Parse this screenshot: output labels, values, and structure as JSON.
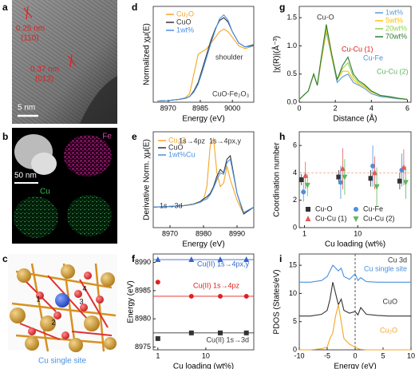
{
  "panel_labels": [
    "a",
    "b",
    "c",
    "d",
    "e",
    "f",
    "g",
    "h",
    "i"
  ],
  "tem": {
    "spacing_1": "0.25 nm",
    "plane_1": "(110)",
    "spacing_2": "0.37 nm",
    "plane_2": "(012)",
    "scale_bar": "5 nm"
  },
  "eds": {
    "fe": "Fe",
    "scale_bar": "50 nm",
    "cu": "Cu"
  },
  "structure": {
    "caption": "Cu single site",
    "site_labels": [
      "1",
      "2",
      "3",
      "4"
    ]
  },
  "chart_data": [
    {
      "type": "line",
      "xlabel": "Energy (eV)",
      "ylabel": "Normalized χμ(E)",
      "x": [
        8965,
        8970,
        8975,
        8978,
        8980,
        8982,
        8984,
        8986,
        8988,
        8990,
        8992,
        8994,
        8996,
        8998,
        9000,
        9003,
        9006,
        9010
      ],
      "xlim": [
        8963,
        9010
      ],
      "xticks": [
        8970,
        8985,
        9000
      ],
      "ylim": [
        0,
        1.7
      ],
      "series": [
        {
          "name": "Cu₂O",
          "color": "#f5a623",
          "values": [
            0.02,
            0.03,
            0.05,
            0.08,
            0.15,
            0.5,
            0.85,
            0.9,
            0.95,
            1.05,
            1.15,
            1.25,
            1.3,
            1.25,
            1.15,
            1.0,
            0.95,
            1.0
          ]
        },
        {
          "name": "CuO",
          "color": "#333333",
          "values": [
            0.02,
            0.03,
            0.05,
            0.07,
            0.1,
            0.2,
            0.35,
            0.6,
            0.85,
            1.1,
            1.3,
            1.45,
            1.5,
            1.42,
            1.25,
            1.05,
            0.98,
            1.02
          ]
        },
        {
          "name": "1wt%",
          "color": "#4a90e2",
          "values": [
            0.02,
            0.03,
            0.05,
            0.07,
            0.1,
            0.18,
            0.32,
            0.55,
            0.8,
            1.05,
            1.28,
            1.48,
            1.55,
            1.45,
            1.25,
            1.05,
            0.98,
            1.0
          ]
        }
      ],
      "annotations": [
        "shoulder",
        "CuO-Fe₂O₃"
      ]
    },
    {
      "type": "line",
      "xlabel": "Energy (eV)",
      "ylabel": "Derivative Norm. χμ(E)",
      "x": [
        8965,
        8970,
        8974,
        8977,
        8979,
        8980,
        8981,
        8982,
        8983,
        8984,
        8985,
        8986,
        8987,
        8988,
        8990,
        8992,
        8995
      ],
      "xlim": [
        8965,
        8995
      ],
      "xticks": [
        8970,
        8980,
        8990
      ],
      "ylim": [
        -0.3,
        1.1
      ],
      "series": [
        {
          "name": "Cu₂O",
          "color": "#f5a623",
          "values": [
            0,
            0.01,
            0.02,
            0.05,
            0.08,
            0.1,
            0.3,
            0.9,
            1.0,
            0.5,
            0.3,
            0.35,
            0.6,
            0.4,
            0.1,
            -0.1,
            0
          ]
        },
        {
          "name": "CuO",
          "color": "#333333",
          "values": [
            0,
            0.01,
            0.02,
            0.04,
            0.08,
            0.12,
            0.15,
            0.2,
            0.3,
            0.45,
            0.55,
            0.5,
            0.7,
            0.75,
            0.2,
            -0.1,
            0
          ]
        },
        {
          "name": "1wt%Cu",
          "color": "#4a90e2",
          "values": [
            0,
            0.01,
            0.02,
            0.04,
            0.07,
            0.1,
            0.12,
            0.18,
            0.28,
            0.4,
            0.5,
            0.48,
            0.65,
            0.7,
            0.2,
            -0.08,
            0
          ]
        }
      ],
      "annotations": [
        "1s→4pz",
        "1s→4px,y",
        "1s→3d"
      ]
    },
    {
      "type": "scatter",
      "xlabel": "Cu loading (wt%)",
      "ylabel": "Energy (eV)",
      "log_x": true,
      "x": [
        1,
        5,
        20,
        70
      ],
      "xlim": [
        0.8,
        100
      ],
      "xticks": [
        1,
        10
      ],
      "ylim": [
        8974.5,
        8991.5
      ],
      "yticks": [
        8975,
        8980,
        8985,
        8990
      ],
      "series": [
        {
          "color": "#3366cc",
          "marker": "triangle",
          "values": [
            8990.5,
            8990.5,
            8990.5,
            8990.5
          ]
        },
        {
          "color": "#e02020",
          "marker": "circle",
          "values": [
            8986.5,
            8984,
            8984,
            8984
          ]
        },
        {
          "color": "#333333",
          "marker": "square",
          "values": [
            8976.5,
            8977.5,
            8977.5,
            8977.5
          ]
        }
      ],
      "hlines": [
        8990.5,
        8984,
        8977.5
      ],
      "hline_colors": [
        "#3366cc",
        "#e02020",
        "#333333"
      ],
      "hline_style": "solid",
      "annotations": [
        "Cu(II) 1s→4px,y",
        "Cu(II) 1s→4pz",
        "Cu(II) 1s→3d"
      ]
    },
    {
      "type": "line",
      "xlabel": "Distance (Å)",
      "ylabel": "|χ(R)|(Å⁻³)",
      "x": [
        0,
        0.5,
        0.8,
        1.0,
        1.2,
        1.5,
        1.8,
        2.1,
        2.4,
        2.7,
        3.0,
        3.3,
        3.6,
        4.0,
        4.5,
        5,
        5.5,
        6
      ],
      "xlim": [
        0,
        6.2
      ],
      "xticks": [
        0,
        2,
        4,
        6
      ],
      "ylim": [
        0,
        1.7
      ],
      "yticks": [
        {
          "value": 0,
          "label": "0.0"
        },
        {
          "value": 0.5,
          "label": "0.5"
        },
        {
          "value": 1,
          "label": "1.0"
        },
        {
          "value": 1.5,
          "label": "1.5"
        }
      ],
      "series": [
        {
          "name": "1wt%",
          "color": "#5b9bd5",
          "values": [
            0.05,
            0.2,
            0.5,
            0.3,
            0.7,
            1.25,
            0.8,
            0.35,
            0.45,
            0.5,
            0.35,
            0.3,
            0.25,
            0.15,
            0.1,
            0.08,
            0.06,
            0.05
          ]
        },
        {
          "name": "5wt%",
          "color": "#ffc000",
          "values": [
            0.05,
            0.2,
            0.5,
            0.3,
            0.7,
            1.28,
            0.8,
            0.4,
            0.55,
            0.55,
            0.4,
            0.32,
            0.28,
            0.18,
            0.12,
            0.1,
            0.07,
            0.05
          ]
        },
        {
          "name": "20wt%",
          "color": "#92d050",
          "values": [
            0.05,
            0.2,
            0.5,
            0.3,
            0.75,
            1.33,
            0.85,
            0.4,
            0.6,
            0.7,
            0.45,
            0.35,
            0.3,
            0.2,
            0.12,
            0.1,
            0.07,
            0.05
          ]
        },
        {
          "name": "70wt%",
          "color": "#2e7d32",
          "values": [
            0.05,
            0.2,
            0.5,
            0.3,
            0.75,
            1.38,
            0.85,
            0.4,
            0.65,
            0.8,
            0.5,
            0.38,
            0.32,
            0.2,
            0.12,
            0.1,
            0.07,
            0.05
          ]
        }
      ],
      "annotations": [
        "Cu-O",
        "Cu-Cu (1)",
        "Cu-Fe",
        "Cu-Cu (2)"
      ]
    },
    {
      "type": "scatter",
      "xlabel": "Cu loading (wt%)",
      "ylabel": "Coordination number",
      "log_x": true,
      "x": [
        1,
        5,
        20,
        70
      ],
      "xlim": [
        0.8,
        100
      ],
      "xticks": [
        1,
        10
      ],
      "ylim": [
        0,
        7
      ],
      "yticks": [
        0,
        2,
        4,
        6
      ],
      "series": [
        {
          "name": "Cu-O",
          "color": "#333333",
          "marker": "square",
          "values": [
            3.5,
            3.7,
            3.6,
            3.4
          ],
          "errors": [
            0.4,
            0.5,
            0.6,
            0.6
          ]
        },
        {
          "name": "Cu-Fe",
          "color": "#4a90e2",
          "marker": "circle",
          "values": [
            2.6,
            3.3,
            4.5,
            4.2
          ],
          "errors": [
            0.7,
            1.2,
            1.5,
            1.2
          ]
        },
        {
          "name": "Cu-Cu (1)",
          "color": "#e05a5a",
          "marker": "triangle",
          "values": [
            3.8,
            4.3,
            4.0,
            4.4
          ],
          "errors": [
            1.0,
            1.5,
            1.2,
            1.3
          ]
        },
        {
          "name": "Cu-Cu (2)",
          "color": "#5cb85c",
          "marker": "triangle-down",
          "values": [
            3.1,
            3.7,
            3.0,
            3.3
          ],
          "errors": [
            0.8,
            1.3,
            1.4,
            1.2
          ]
        }
      ],
      "hlines": [
        4
      ],
      "hline_colors": [
        "#f4b183"
      ],
      "hline_style": "dashed"
    },
    {
      "type": "line",
      "xlabel": "Energy (eV)",
      "ylabel": "PDOS (States/eV)",
      "x": [
        -10,
        -8,
        -6,
        -5,
        -4.5,
        -4,
        -3.5,
        -3,
        -2.5,
        -2,
        -1,
        0,
        0.5,
        1,
        2,
        4,
        6,
        8,
        10
      ],
      "xlim": [
        -10,
        10
      ],
      "xticks": [
        -10,
        -5,
        0,
        5,
        10
      ],
      "ylim": [
        0,
        17
      ],
      "yticks": [
        0,
        5,
        10,
        15
      ],
      "series": [
        {
          "name": "Cu single site",
          "color": "#4a90e2",
          "values": [
            12,
            12,
            12.3,
            13,
            14,
            15,
            14.5,
            14,
            14.5,
            13,
            12.5,
            13.5,
            12.3,
            12.8,
            12.1,
            12,
            12,
            12,
            12
          ]
        },
        {
          "name": "CuO",
          "color": "#333333",
          "values": [
            6,
            6,
            6.3,
            7,
            9,
            12,
            10,
            8,
            9,
            7,
            6.5,
            6.8,
            6.2,
            7.5,
            6.3,
            6.1,
            6,
            6,
            6
          ]
        },
        {
          "name": "Cu₂O",
          "color": "#f5a623",
          "values": [
            0,
            0,
            0.2,
            0.5,
            2,
            3,
            6,
            8,
            5,
            2,
            1,
            0.5,
            0.2,
            0.1,
            0,
            0,
            0,
            0,
            0
          ]
        }
      ],
      "vlines": [
        0
      ],
      "annotations": [
        "Cu 3d"
      ]
    }
  ]
}
